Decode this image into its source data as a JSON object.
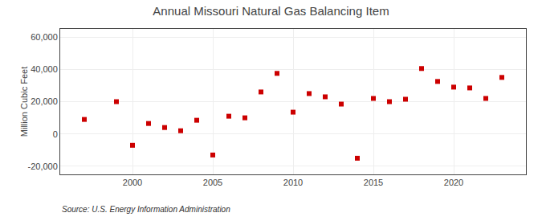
{
  "chart_data": {
    "type": "scatter",
    "title": "Annual Missouri Natural Gas Balancing Item",
    "y_label": "Million Cubic Feet",
    "annotations": [
      "Source: U.S. Energy Information Administration"
    ],
    "x": [
      1997,
      1999,
      2000,
      2001,
      2002,
      2003,
      2004,
      2005,
      2006,
      2007,
      2008,
      2009,
      2010,
      2011,
      2012,
      2013,
      2014,
      2015,
      2016,
      2017,
      2018,
      2019,
      2020,
      2021,
      2022,
      2023
    ],
    "values": [
      9000,
      20000,
      -7000,
      6500,
      4000,
      2000,
      8500,
      -13000,
      11000,
      10000,
      26000,
      37500,
      13500,
      25000,
      23000,
      18500,
      -15000,
      22000,
      20000,
      21500,
      40500,
      32500,
      29000,
      28500,
      22000,
      35000
    ],
    "color": "#cc0000",
    "marker": "square",
    "xlim": [
      1995.5,
      2024.5
    ],
    "ylim": [
      -25000,
      65000
    ],
    "xticks": [
      2000,
      2005,
      2010,
      2015,
      2020
    ],
    "yticks": [
      {
        "value": -20000,
        "label": "-20,000"
      },
      0,
      {
        "value": 20000,
        "label": "20,000"
      },
      {
        "value": 40000,
        "label": "40,000"
      },
      {
        "value": 60000,
        "label": "60,000"
      }
    ],
    "grid": true
  }
}
